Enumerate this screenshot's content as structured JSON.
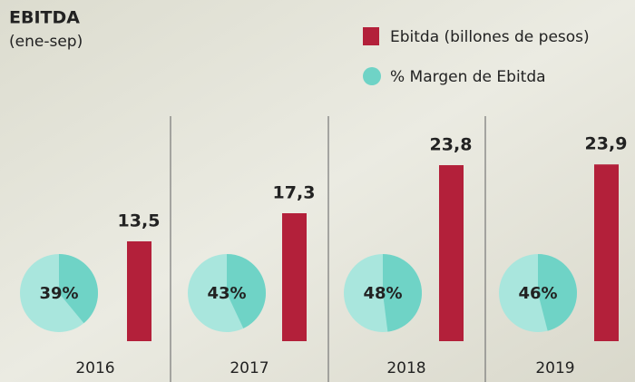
{
  "chart_data": {
    "type": "bar",
    "title": "EBITDA",
    "subtitle": "(ene-sep)",
    "categories": [
      "2016",
      "2017",
      "2018",
      "2019"
    ],
    "series": [
      {
        "name": "Ebitda (billones de pesos)",
        "color": "#b3203a",
        "values": [
          13.5,
          17.3,
          23.8,
          23.9
        ],
        "value_labels": [
          "13,5",
          "17,3",
          "23,8",
          "23,9"
        ]
      },
      {
        "name": "% Margen de Ebitda",
        "type": "pie",
        "color": "#6fd3c6",
        "values": [
          39,
          43,
          48,
          46
        ],
        "value_labels": [
          "39%",
          "43%",
          "48%",
          "46%"
        ]
      }
    ]
  }
}
